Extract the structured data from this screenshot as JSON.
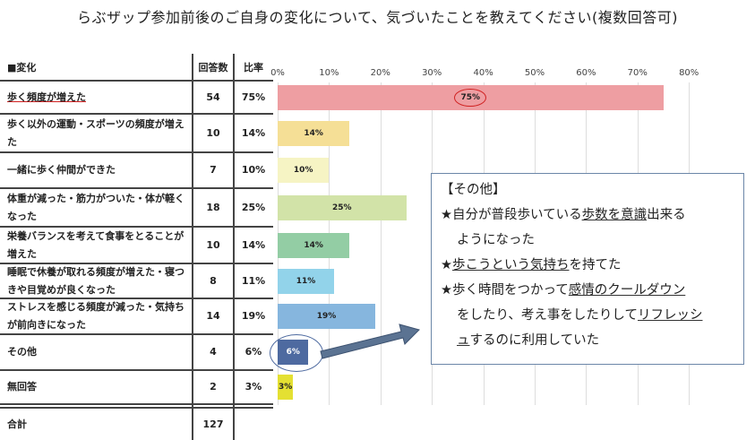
{
  "title": "らぶザップ参加前後のご自身の変化について、気づいたことを教えてください(複数回答可)",
  "table": {
    "headers": [
      "■変化",
      "回答数",
      "比率"
    ],
    "rows": [
      {
        "label": "歩く頻度が増えた",
        "count": "54",
        "ratio": "75%"
      },
      {
        "label": "歩く以外の運動・スポーツの頻度が増えた",
        "count": "10",
        "ratio": "14%"
      },
      {
        "label": "一緒に歩く仲間ができた",
        "count": "7",
        "ratio": "10%"
      },
      {
        "label": "体重が減った・筋力がついた・体が軽くなった",
        "count": "18",
        "ratio": "25%"
      },
      {
        "label": "栄養バランスを考えて食事をとることが増えた",
        "count": "10",
        "ratio": "14%"
      },
      {
        "label": "睡眠で休養が取れる頻度が増えた・寝つきや目覚めが良くなった",
        "count": "8",
        "ratio": "11%"
      },
      {
        "label": "ストレスを感じる頻度が減った・気持ちが前向きになった",
        "count": "14",
        "ratio": "19%"
      },
      {
        "label": "その他",
        "count": "4",
        "ratio": "6%"
      },
      {
        "label": "無回答",
        "count": "2",
        "ratio": "3%"
      }
    ],
    "total_label": "合計",
    "total_count": "127"
  },
  "chart_data": {
    "type": "bar",
    "orientation": "horizontal",
    "categories": [
      "歩く頻度が増えた",
      "歩く以外の運動・スポーツの頻度が増えた",
      "一緒に歩く仲間ができた",
      "体重が減った・筋力がついた・体が軽くなった",
      "栄養バランスを考えて食事をとることが増えた",
      "睡眠で休養が取れる頻度が増えた・寝つきや目覚めが良くなった",
      "ストレスを感じる頻度が減った・気持ちが前向きになった",
      "その他",
      "無回答"
    ],
    "values": [
      75,
      14,
      10,
      25,
      14,
      11,
      19,
      6,
      3
    ],
    "data_labels": [
      "75%",
      "14%",
      "10%",
      "25%",
      "14%",
      "11%",
      "19%",
      "6%",
      "3%"
    ],
    "colors": [
      "#ee9ea2",
      "#f5df96",
      "#f6f4c4",
      "#d2e3a8",
      "#93cda4",
      "#92d3ea",
      "#86b6de",
      "#4e6aa0",
      "#e4e032"
    ],
    "xlim": [
      0,
      80
    ],
    "ticks": [
      "0%",
      "10%",
      "20%",
      "30%",
      "40%",
      "50%",
      "60%",
      "70%",
      "80%"
    ],
    "grid": true
  },
  "comment": {
    "heading": "【その他】",
    "lines": [
      [
        "★自分が普段歩いている",
        "歩数を意識",
        "出来る"
      ],
      [
        "ようになった"
      ],
      [
        "★",
        "歩こうという気持ち",
        "を持てた"
      ],
      [
        "★歩く時間をつかって",
        "感情のクールダウン",
        ""
      ],
      [
        "をしたり、考え事をしたりして",
        "リフレッシ",
        ""
      ],
      [
        "",
        "ュ",
        "するのに利用していた"
      ]
    ]
  }
}
